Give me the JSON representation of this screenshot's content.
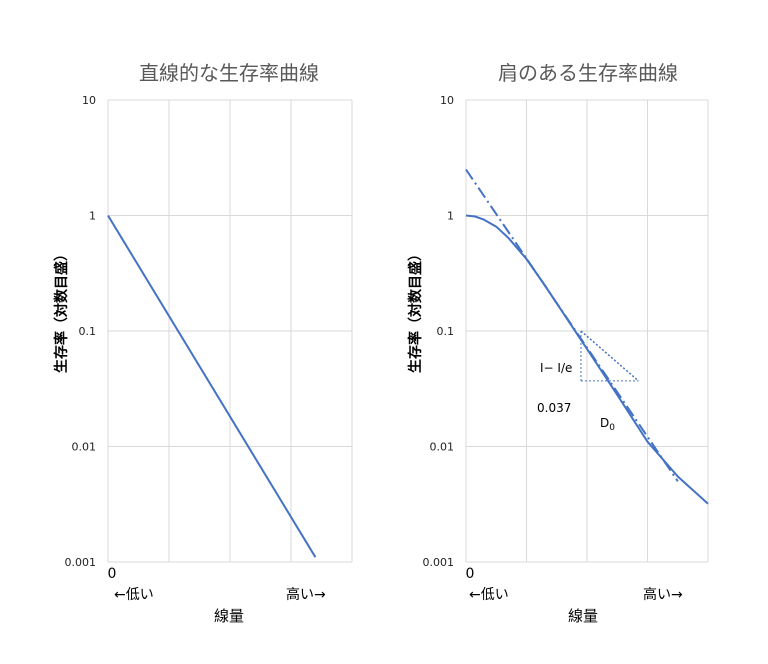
{
  "colors": {
    "line": "#4472C4",
    "grid": "#d9d9d9",
    "text": "#222222",
    "title": "#595959"
  },
  "chart_data": [
    {
      "type": "line",
      "title": "直線的な生存率曲線",
      "ylabel": "生存率（対数目盛）",
      "xlabel": "線量",
      "x_start_label": "0",
      "x_low_label": "←低い",
      "x_high_label": "高い→",
      "y_scale": "log",
      "ylim": [
        0.001,
        10
      ],
      "y_ticks": [
        "10",
        "1",
        "0.1",
        "0.01",
        "0.001"
      ],
      "xlim": [
        0,
        4
      ],
      "grid": true,
      "series": [
        {
          "style": "solid",
          "x": [
            0,
            3.4
          ],
          "y": [
            1,
            0.0011
          ]
        }
      ]
    },
    {
      "type": "line",
      "title": "肩のある生存率曲線",
      "ylabel": "生存率（対数目盛）",
      "xlabel": "線量",
      "x_start_label": "0",
      "x_low_label": "←低い",
      "x_high_label": "高い→",
      "y_scale": "log",
      "ylim": [
        0.001,
        10
      ],
      "y_ticks": [
        "10",
        "1",
        "0.1",
        "0.01",
        "0.001"
      ],
      "xlim": [
        0,
        4
      ],
      "grid": true,
      "series": [
        {
          "style": "solid",
          "x": [
            0,
            0.15,
            0.3,
            0.5,
            0.7,
            1.0,
            1.3,
            1.6,
            2.0,
            2.5,
            3.0,
            3.5,
            4.0
          ],
          "y": [
            1.0,
            0.98,
            0.92,
            0.8,
            0.64,
            0.42,
            0.25,
            0.145,
            0.07,
            0.028,
            0.011,
            0.0055,
            0.0032
          ]
        },
        {
          "style": "dashdot",
          "x": [
            0,
            3.5
          ],
          "y": [
            2.5,
            0.005
          ]
        }
      ],
      "annotations": {
        "ratio_label": "I− I/e",
        "level_label": "0.037",
        "d0_label": "D",
        "d0_sub": "0",
        "bracket": {
          "x0": 1.9,
          "x1": 2.85,
          "y_top": 0.1,
          "y_bottom": 0.037
        }
      }
    }
  ]
}
